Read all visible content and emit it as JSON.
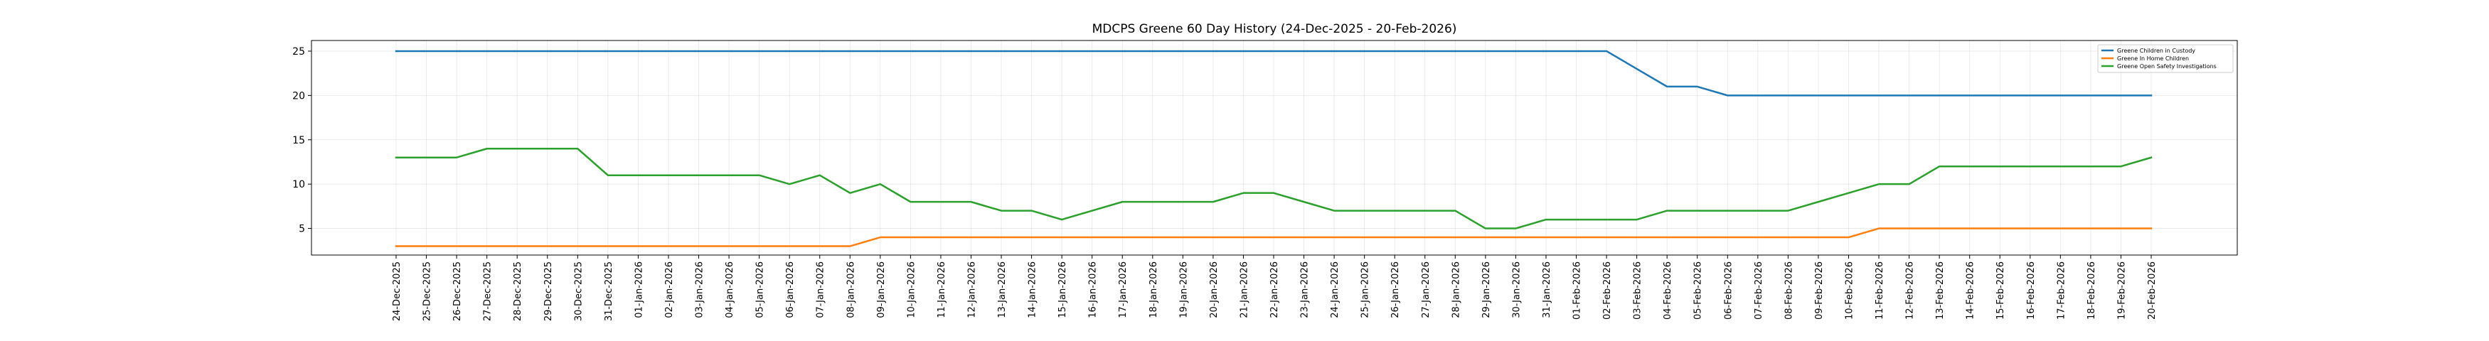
{
  "chart_data": {
    "type": "line",
    "title": "MDCPS Greene 60 Day History (24-Dec-2025 - 20-Feb-2026)",
    "xlabel": "",
    "ylabel": "",
    "ylim": [
      2,
      26.2
    ],
    "yticks": [
      5,
      10,
      15,
      20,
      25
    ],
    "grid": true,
    "legend_position": "top-right",
    "categories": [
      "24-Dec-2025",
      "25-Dec-2025",
      "26-Dec-2025",
      "27-Dec-2025",
      "28-Dec-2025",
      "29-Dec-2025",
      "30-Dec-2025",
      "31-Dec-2025",
      "01-Jan-2026",
      "02-Jan-2026",
      "03-Jan-2026",
      "04-Jan-2026",
      "05-Jan-2026",
      "06-Jan-2026",
      "07-Jan-2026",
      "08-Jan-2026",
      "09-Jan-2026",
      "10-Jan-2026",
      "11-Jan-2026",
      "12-Jan-2026",
      "13-Jan-2026",
      "14-Jan-2026",
      "15-Jan-2026",
      "16-Jan-2026",
      "17-Jan-2026",
      "18-Jan-2026",
      "19-Jan-2026",
      "20-Jan-2026",
      "21-Jan-2026",
      "22-Jan-2026",
      "23-Jan-2026",
      "24-Jan-2026",
      "25-Jan-2026",
      "26-Jan-2026",
      "27-Jan-2026",
      "28-Jan-2026",
      "29-Jan-2026",
      "30-Jan-2026",
      "31-Jan-2026",
      "01-Feb-2026",
      "02-Feb-2026",
      "03-Feb-2026",
      "04-Feb-2026",
      "05-Feb-2026",
      "06-Feb-2026",
      "07-Feb-2026",
      "08-Feb-2026",
      "09-Feb-2026",
      "10-Feb-2026",
      "11-Feb-2026",
      "12-Feb-2026",
      "13-Feb-2026",
      "14-Feb-2026",
      "15-Feb-2026",
      "16-Feb-2026",
      "17-Feb-2026",
      "18-Feb-2026",
      "19-Feb-2026",
      "20-Feb-2026"
    ],
    "series": [
      {
        "name": "Greene Children in Custody",
        "color": "#1f77b4",
        "values": [
          25,
          25,
          25,
          25,
          25,
          25,
          25,
          25,
          25,
          25,
          25,
          25,
          25,
          25,
          25,
          25,
          25,
          25,
          25,
          25,
          25,
          25,
          25,
          25,
          25,
          25,
          25,
          25,
          25,
          25,
          25,
          25,
          25,
          25,
          25,
          25,
          25,
          25,
          25,
          25,
          25,
          23,
          21,
          21,
          20,
          20,
          20,
          20,
          20,
          20,
          20,
          20,
          20,
          20,
          20,
          20,
          20,
          20,
          20
        ]
      },
      {
        "name": "Greene In Home Children",
        "color": "#ff7f0e",
        "values": [
          3,
          3,
          3,
          3,
          3,
          3,
          3,
          3,
          3,
          3,
          3,
          3,
          3,
          3,
          3,
          3,
          4,
          4,
          4,
          4,
          4,
          4,
          4,
          4,
          4,
          4,
          4,
          4,
          4,
          4,
          4,
          4,
          4,
          4,
          4,
          4,
          4,
          4,
          4,
          4,
          4,
          4,
          4,
          4,
          4,
          4,
          4,
          4,
          4,
          5,
          5,
          5,
          5,
          5,
          5,
          5,
          5,
          5,
          5
        ]
      },
      {
        "name": "Greene Open Safety Investigations",
        "color": "#2ca02c",
        "values": [
          13,
          13,
          13,
          14,
          14,
          14,
          14,
          11,
          11,
          11,
          11,
          11,
          11,
          10,
          11,
          9,
          10,
          8,
          8,
          8,
          7,
          7,
          6,
          7,
          8,
          8,
          8,
          8,
          9,
          9,
          8,
          7,
          7,
          7,
          7,
          7,
          5,
          5,
          6,
          6,
          6,
          6,
          7,
          7,
          7,
          7,
          7,
          8,
          9,
          10,
          10,
          12,
          12,
          12,
          12,
          12,
          12,
          12,
          13
        ]
      }
    ]
  }
}
